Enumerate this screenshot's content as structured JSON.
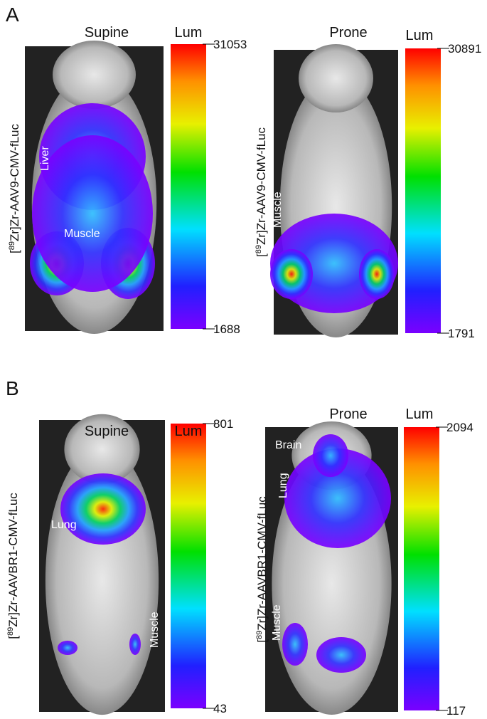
{
  "panels": [
    {
      "letter": "A",
      "views": [
        {
          "title": "Supine",
          "construct": {
            "open": "[",
            "sup": "89",
            "rest": "Zr]Zr-AAV9-CMV-fLuc"
          },
          "scale_label": "Lum",
          "max": 31053,
          "min": 1688,
          "labels": [
            "Liver",
            "Muscle"
          ]
        },
        {
          "title": "Prone",
          "construct": {
            "open": "[",
            "sup": "89",
            "rest": "Zr]Zr-AAV9-CMV-fLuc"
          },
          "scale_label": "Lum",
          "max": 30891,
          "min": 1791,
          "labels": [
            "Muscle"
          ]
        }
      ]
    },
    {
      "letter": "B",
      "views": [
        {
          "title": "Supine",
          "construct": {
            "open": "[",
            "sup": "89",
            "rest": "Zr]Zr-AAVBR1-CMV-fLuc"
          },
          "scale_label": "Lum",
          "max": 801,
          "min": 43,
          "labels": [
            "Lung",
            "Muscle"
          ]
        },
        {
          "title": "Prone",
          "construct": {
            "open": "[",
            "sup": "89",
            "rest": "Zr]Zr-AAVBR1-CMV-fLuc"
          },
          "scale_label": "Lum",
          "max": 2094,
          "min": 117,
          "labels": [
            "Brain",
            "Lung",
            "Muscle"
          ]
        }
      ]
    }
  ]
}
